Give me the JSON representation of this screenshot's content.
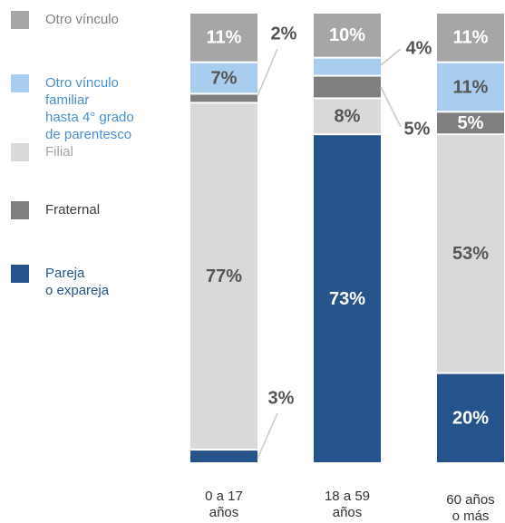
{
  "chart_data": {
    "type": "stacked_bar",
    "categories": [
      "0 a 17\naños",
      "18 a 59\naños",
      "60 años\no más"
    ],
    "ylim": [
      0,
      100
    ],
    "series": [
      {
        "name": "Pareja\no expareja",
        "color": "#26548a",
        "text_color": "#26548a",
        "label_color": "#ffffff",
        "values": [
          3,
          73,
          20
        ],
        "value_labels": [
          "3%",
          "73%",
          "20%"
        ]
      },
      {
        "name": "Filial",
        "color": "#d9d9d9",
        "text_color": "#a6a6a6",
        "label_color": "#555555",
        "values": [
          77,
          8,
          53
        ],
        "value_labels": [
          "77%",
          "8%",
          "53%"
        ]
      },
      {
        "name": "Fraternal",
        "color": "#7f7f7f",
        "text_color": "#404040",
        "label_color": "#ffffff",
        "values": [
          2,
          5,
          5
        ],
        "value_labels": [
          "2%",
          "5%",
          "5%"
        ]
      },
      {
        "name": "Otro vínculo\nfamiliar\nhasta 4° grado\nde parentesco",
        "color": "#a9cdee",
        "text_color": "#4a90d0",
        "label_color": "#555555",
        "values": [
          7,
          4,
          11
        ],
        "value_labels": [
          "7%",
          "4%",
          "11%"
        ]
      },
      {
        "name": "Otro vínculo",
        "color": "#a6a6a6",
        "text_color": "#808080",
        "label_color": "#ffffff",
        "values": [
          11,
          10,
          11
        ],
        "value_labels": [
          "11%",
          "10%",
          "11%"
        ]
      }
    ]
  }
}
